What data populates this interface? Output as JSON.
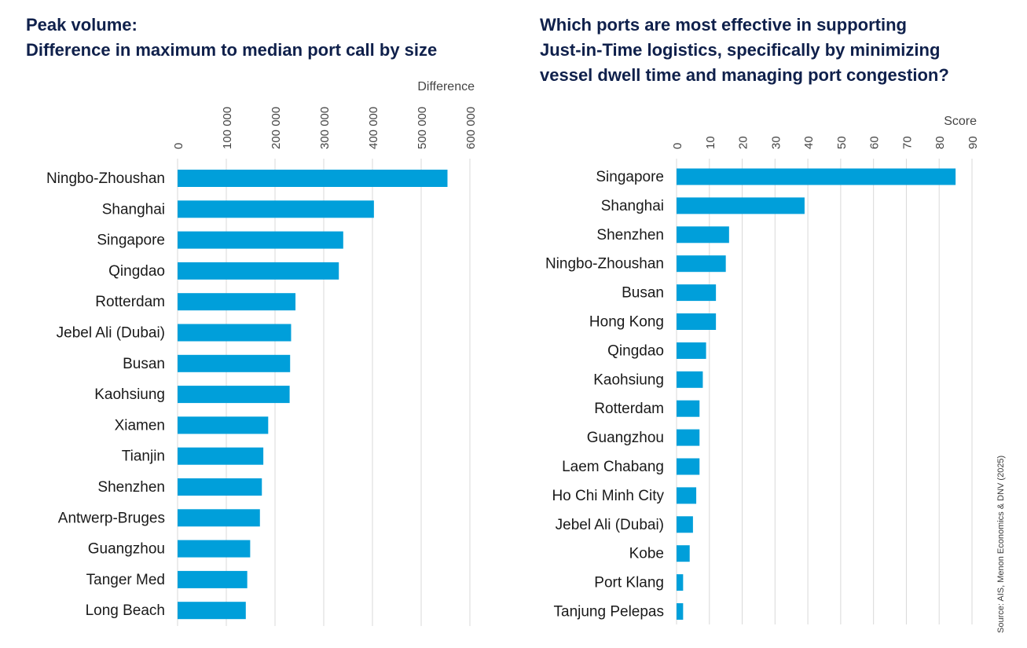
{
  "chart_data": [
    {
      "type": "bar",
      "orientation": "horizontal",
      "title_lines": [
        "Peak volume:",
        "Difference in maximum to median port call by size"
      ],
      "xlabel": "Difference",
      "ylabel": "",
      "xlim": [
        0,
        600000
      ],
      "ticks": [
        0,
        100000,
        200000,
        300000,
        400000,
        500000,
        600000
      ],
      "tick_labels": [
        "0",
        "100 000",
        "200 000",
        "300 000",
        "400 000",
        "500 000",
        "600 000"
      ],
      "grid": true,
      "bar_color": "#009fda",
      "categories": [
        "Ningbo-Zhoushan",
        "Shanghai",
        "Singapore",
        "Qingdao",
        "Rotterdam",
        "Jebel Ali (Dubai)",
        "Busan",
        "Kaohsiung",
        "Xiamen",
        "Tianjin",
        "Shenzhen",
        "Antwerp-Bruges",
        "Guangzhou",
        "Tanger Med",
        "Long Beach"
      ],
      "values": [
        554000,
        403000,
        340000,
        331000,
        242000,
        233000,
        231000,
        230000,
        186000,
        176000,
        173000,
        169000,
        149000,
        143000,
        140000
      ]
    },
    {
      "type": "bar",
      "orientation": "horizontal",
      "title_lines": [
        "Which ports are most effective in supporting",
        "Just-in-Time logistics, specifically by minimizing",
        "vessel dwell time and managing port congestion?"
      ],
      "xlabel": "Score",
      "ylabel": "",
      "xlim": [
        0,
        90
      ],
      "ticks": [
        0,
        10,
        20,
        30,
        40,
        50,
        60,
        70,
        80,
        90
      ],
      "tick_labels": [
        "0",
        "10",
        "20",
        "30",
        "40",
        "50",
        "60",
        "70",
        "80",
        "90"
      ],
      "grid": true,
      "bar_color": "#009fda",
      "categories": [
        "Singapore",
        "Shanghai",
        "Shenzhen",
        "Ningbo-Zhoushan",
        "Busan",
        "Hong Kong",
        "Qingdao",
        "Kaohsiung",
        "Rotterdam",
        "Guangzhou",
        "Laem Chabang",
        "Ho Chi Minh City",
        "Jebel Ali (Dubai)",
        "Kobe",
        "Port Klang",
        "Tanjung Pelepas"
      ],
      "values": [
        85,
        39,
        16,
        15,
        12,
        12,
        9,
        8,
        7,
        7,
        7,
        6,
        5,
        4,
        2,
        2
      ]
    }
  ],
  "source": "Source: AIS, Menon Economics & DNV (2025)"
}
